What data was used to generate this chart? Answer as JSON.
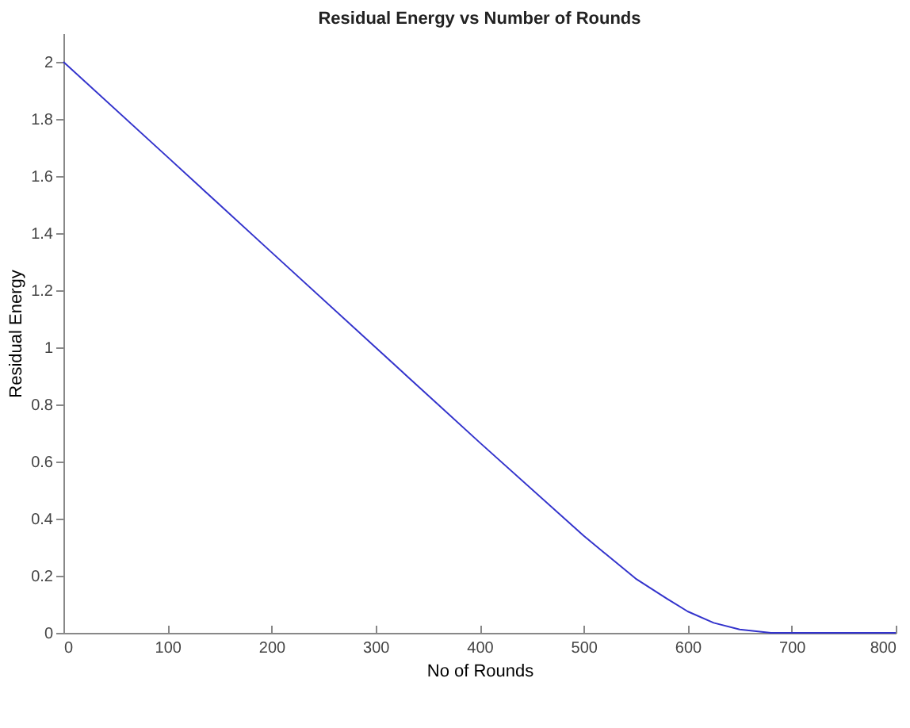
{
  "chart_data": {
    "type": "line",
    "title": "Residual Energy vs Number of Rounds",
    "xlabel": "No of Rounds",
    "ylabel": "Residual Energy",
    "x": [
      0,
      100,
      200,
      300,
      400,
      500,
      550,
      580,
      600,
      625,
      650,
      680,
      700,
      800
    ],
    "series": [
      {
        "color": "#3333cc",
        "values": [
          2,
          1.667,
          1.333,
          1.0,
          0.667,
          0.34,
          0.19,
          0.12,
          0.075,
          0.035,
          0.012,
          0,
          0,
          0
        ]
      }
    ],
    "xlim": [
      0,
      800
    ],
    "xticks": [
      0,
      100,
      200,
      300,
      400,
      500,
      600,
      700,
      800
    ],
    "ylim": [
      0,
      2.1
    ],
    "yticks": [
      0,
      0.2,
      0.4,
      0.6,
      0.8,
      1,
      1.2,
      1.4,
      1.6,
      1.8,
      2
    ],
    "grid": false,
    "marker": "none",
    "line_style": "solid"
  }
}
